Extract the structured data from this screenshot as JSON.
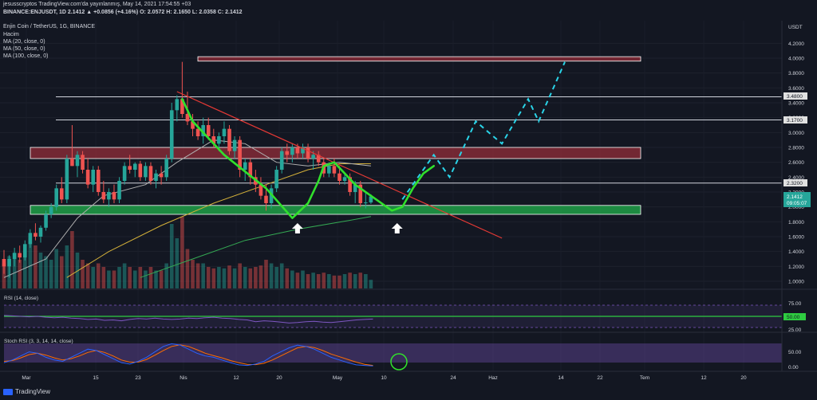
{
  "header": {
    "line1": "jesusscryptos TradingView.com'da yayınlanmış, May 14, 2021 17:54:55 +03",
    "line2": "BINANCE:ENJUSDT, 1D 2.1412 ▲ +0.0856 (+4.16%) O: 2.0572 H: 2.1650 L: 2.0358 C: 2.1412",
    "symbol_title": "Enjin Coin / TetherUS, 1G, BINANCE",
    "ind_volume": "Hacim",
    "ind_ma20": "MA (20, close, 0)",
    "ind_ma50": "MA (50, close, 0)",
    "ind_ma100": "MA (100, close, 0)"
  },
  "price_axis": {
    "currency": "USDT",
    "ticks": [
      "4.2000",
      "4.0000",
      "3.8000",
      "3.6000",
      "3.4000",
      "3.2000",
      "3.0000",
      "2.8000",
      "2.6000",
      "2.4000",
      "2.2000",
      "2.0000",
      "1.8000",
      "1.6000",
      "1.4000",
      "1.2000",
      "1.0000"
    ],
    "level_labels": [
      "3.4800",
      "3.1700",
      "2.3200"
    ],
    "last_price": "2.1412",
    "countdown": "09:05:07"
  },
  "time_axis": {
    "ticks": [
      "Mar",
      "15",
      "23",
      "Nis",
      "12",
      "20",
      "May",
      "10",
      "24",
      "Haz",
      "14",
      "22",
      "Tem",
      "12",
      "20"
    ]
  },
  "rsi_panel": {
    "title": "RSI (14, close)",
    "ticks": [
      "75.00",
      "50.00",
      "25.00"
    ],
    "current": "50.00"
  },
  "stoch_panel": {
    "title": "Stoch RSI (3, 3, 14, 14, close)",
    "ticks": [
      "50.00",
      "0.00"
    ]
  },
  "footer": {
    "brand": "TradingView"
  },
  "colors": {
    "background": "#131722",
    "up": "#26a69a",
    "down": "#ef5350",
    "support_zone": "#22b14c",
    "resistance_zone": "#8b2c38",
    "trendline": "#e53935",
    "green_path": "#31e02c",
    "projection": "#2ad4e8",
    "ma20": "#b0b0b0",
    "ma50": "#d4b13a",
    "ma100": "#34a853",
    "rsi": "#7e57c2",
    "stoch_k": "#2962ff",
    "stoch_d": "#ff6d00"
  },
  "chart_data": {
    "type": "candlestick",
    "symbol": "ENJUSDT",
    "ylim": [
      0.9,
      4.25
    ],
    "candles": [
      {
        "o": 1.3,
        "h": 1.42,
        "l": 1.1,
        "c": 1.2
      },
      {
        "o": 1.2,
        "h": 1.35,
        "l": 1.05,
        "c": 1.3
      },
      {
        "o": 1.3,
        "h": 1.45,
        "l": 1.2,
        "c": 1.38
      },
      {
        "o": 1.38,
        "h": 1.48,
        "l": 1.25,
        "c": 1.32
      },
      {
        "o": 1.32,
        "h": 1.55,
        "l": 1.28,
        "c": 1.5
      },
      {
        "o": 1.5,
        "h": 1.7,
        "l": 1.45,
        "c": 1.65
      },
      {
        "o": 1.65,
        "h": 1.78,
        "l": 1.55,
        "c": 1.6
      },
      {
        "o": 1.6,
        "h": 1.75,
        "l": 1.52,
        "c": 1.72
      },
      {
        "o": 1.72,
        "h": 1.95,
        "l": 1.68,
        "c": 1.9
      },
      {
        "o": 1.9,
        "h": 2.05,
        "l": 1.85,
        "c": 2.0
      },
      {
        "o": 2.0,
        "h": 2.3,
        "l": 1.95,
        "c": 2.25
      },
      {
        "o": 2.25,
        "h": 2.4,
        "l": 2.05,
        "c": 2.1
      },
      {
        "o": 2.1,
        "h": 2.7,
        "l": 2.05,
        "c": 2.65
      },
      {
        "o": 2.65,
        "h": 3.1,
        "l": 2.55,
        "c": 2.55
      },
      {
        "o": 2.55,
        "h": 2.75,
        "l": 2.4,
        "c": 2.7
      },
      {
        "o": 2.7,
        "h": 2.75,
        "l": 2.45,
        "c": 2.5
      },
      {
        "o": 2.5,
        "h": 2.65,
        "l": 2.25,
        "c": 2.3
      },
      {
        "o": 2.3,
        "h": 2.55,
        "l": 2.2,
        "c": 2.5
      },
      {
        "o": 2.5,
        "h": 2.55,
        "l": 2.15,
        "c": 2.2
      },
      {
        "o": 2.2,
        "h": 2.35,
        "l": 2.05,
        "c": 2.1
      },
      {
        "o": 2.1,
        "h": 2.25,
        "l": 2.0,
        "c": 2.2
      },
      {
        "o": 2.2,
        "h": 2.3,
        "l": 2.05,
        "c": 2.1
      },
      {
        "o": 2.1,
        "h": 2.4,
        "l": 2.05,
        "c": 2.35
      },
      {
        "o": 2.35,
        "h": 2.6,
        "l": 2.3,
        "c": 2.55
      },
      {
        "o": 2.55,
        "h": 2.7,
        "l": 2.45,
        "c": 2.5
      },
      {
        "o": 2.5,
        "h": 2.6,
        "l": 2.4,
        "c": 2.58
      },
      {
        "o": 2.58,
        "h": 2.62,
        "l": 2.35,
        "c": 2.4
      },
      {
        "o": 2.4,
        "h": 2.6,
        "l": 2.35,
        "c": 2.55
      },
      {
        "o": 2.55,
        "h": 2.6,
        "l": 2.3,
        "c": 2.35
      },
      {
        "o": 2.35,
        "h": 2.5,
        "l": 2.25,
        "c": 2.45
      },
      {
        "o": 2.45,
        "h": 2.55,
        "l": 2.3,
        "c": 2.4
      },
      {
        "o": 2.4,
        "h": 2.7,
        "l": 2.35,
        "c": 2.65
      },
      {
        "o": 2.65,
        "h": 3.4,
        "l": 2.6,
        "c": 3.3
      },
      {
        "o": 3.3,
        "h": 3.5,
        "l": 3.15,
        "c": 3.45
      },
      {
        "o": 3.45,
        "h": 3.95,
        "l": 3.2,
        "c": 3.25
      },
      {
        "o": 3.25,
        "h": 3.55,
        "l": 3.1,
        "c": 3.15
      },
      {
        "o": 3.15,
        "h": 3.25,
        "l": 2.95,
        "c": 3.05
      },
      {
        "o": 3.05,
        "h": 3.15,
        "l": 2.9,
        "c": 2.95
      },
      {
        "o": 2.95,
        "h": 3.2,
        "l": 2.85,
        "c": 3.1
      },
      {
        "o": 3.1,
        "h": 3.2,
        "l": 2.9,
        "c": 2.95
      },
      {
        "o": 2.95,
        "h": 3.05,
        "l": 2.8,
        "c": 2.85
      },
      {
        "o": 2.85,
        "h": 3.0,
        "l": 2.75,
        "c": 2.95
      },
      {
        "o": 2.95,
        "h": 3.15,
        "l": 2.85,
        "c": 3.05
      },
      {
        "o": 3.05,
        "h": 3.1,
        "l": 2.7,
        "c": 2.75
      },
      {
        "o": 2.75,
        "h": 2.95,
        "l": 2.65,
        "c": 2.9
      },
      {
        "o": 2.9,
        "h": 2.95,
        "l": 2.4,
        "c": 2.5
      },
      {
        "o": 2.5,
        "h": 2.65,
        "l": 2.35,
        "c": 2.6
      },
      {
        "o": 2.6,
        "h": 2.65,
        "l": 2.3,
        "c": 2.4
      },
      {
        "o": 2.4,
        "h": 2.5,
        "l": 2.2,
        "c": 2.3
      },
      {
        "o": 2.3,
        "h": 2.4,
        "l": 2.1,
        "c": 2.15
      },
      {
        "o": 2.15,
        "h": 2.3,
        "l": 1.95,
        "c": 2.05
      },
      {
        "o": 2.05,
        "h": 2.3,
        "l": 1.98,
        "c": 2.25
      },
      {
        "o": 2.25,
        "h": 2.55,
        "l": 2.2,
        "c": 2.5
      },
      {
        "o": 2.5,
        "h": 2.8,
        "l": 2.45,
        "c": 2.75
      },
      {
        "o": 2.75,
        "h": 2.85,
        "l": 2.6,
        "c": 2.7
      },
      {
        "o": 2.7,
        "h": 2.85,
        "l": 2.6,
        "c": 2.8
      },
      {
        "o": 2.8,
        "h": 2.85,
        "l": 2.65,
        "c": 2.72
      },
      {
        "o": 2.72,
        "h": 2.85,
        "l": 2.65,
        "c": 2.8
      },
      {
        "o": 2.8,
        "h": 2.85,
        "l": 2.6,
        "c": 2.65
      },
      {
        "o": 2.65,
        "h": 2.75,
        "l": 2.5,
        "c": 2.7
      },
      {
        "o": 2.7,
        "h": 2.75,
        "l": 2.55,
        "c": 2.6
      },
      {
        "o": 2.6,
        "h": 2.65,
        "l": 2.4,
        "c": 2.45
      },
      {
        "o": 2.45,
        "h": 2.6,
        "l": 2.4,
        "c": 2.55
      },
      {
        "o": 2.55,
        "h": 2.65,
        "l": 2.4,
        "c": 2.45
      },
      {
        "o": 2.45,
        "h": 2.55,
        "l": 2.3,
        "c": 2.35
      },
      {
        "o": 2.35,
        "h": 2.45,
        "l": 2.3,
        "c": 2.4
      },
      {
        "o": 2.4,
        "h": 2.45,
        "l": 2.15,
        "c": 2.2
      },
      {
        "o": 2.2,
        "h": 2.35,
        "l": 2.05,
        "c": 2.3
      },
      {
        "o": 2.3,
        "h": 2.35,
        "l": 2.0,
        "c": 2.05
      },
      {
        "o": 2.05,
        "h": 2.2,
        "l": 1.98,
        "c": 2.06
      },
      {
        "o": 2.06,
        "h": 2.17,
        "l": 2.04,
        "c": 2.14
      }
    ],
    "volume": [
      0.35,
      0.45,
      0.5,
      0.4,
      0.55,
      0.7,
      0.6,
      0.5,
      0.45,
      0.4,
      0.55,
      0.45,
      0.6,
      0.8,
      0.5,
      0.4,
      0.35,
      0.3,
      0.35,
      0.3,
      0.25,
      0.25,
      0.3,
      0.35,
      0.3,
      0.25,
      0.3,
      0.25,
      0.3,
      0.25,
      0.25,
      0.35,
      0.9,
      0.7,
      1.0,
      0.55,
      0.4,
      0.35,
      0.35,
      0.3,
      0.28,
      0.3,
      0.28,
      0.32,
      0.28,
      0.35,
      0.3,
      0.28,
      0.3,
      0.32,
      0.4,
      0.35,
      0.3,
      0.35,
      0.28,
      0.25,
      0.22,
      0.25,
      0.2,
      0.22,
      0.2,
      0.22,
      0.2,
      0.18,
      0.18,
      0.2,
      0.22,
      0.2,
      0.22,
      0.2,
      0.12
    ],
    "ma20": [
      [
        0,
        1.05
      ],
      [
        8,
        1.3
      ],
      [
        14,
        1.85
      ],
      [
        19,
        2.15
      ],
      [
        27,
        2.3
      ],
      [
        33,
        2.6
      ],
      [
        40,
        2.9
      ],
      [
        46,
        2.85
      ],
      [
        52,
        2.6
      ],
      [
        58,
        2.55
      ],
      [
        64,
        2.6
      ],
      [
        70,
        2.55
      ]
    ],
    "ma50": [
      [
        12,
        1.05
      ],
      [
        20,
        1.4
      ],
      [
        30,
        1.75
      ],
      [
        40,
        2.05
      ],
      [
        50,
        2.3
      ],
      [
        58,
        2.5
      ],
      [
        64,
        2.58
      ],
      [
        70,
        2.58
      ]
    ],
    "ma100": [
      [
        26,
        1.05
      ],
      [
        36,
        1.3
      ],
      [
        46,
        1.55
      ],
      [
        56,
        1.7
      ],
      [
        66,
        1.82
      ],
      [
        70,
        1.87
      ]
    ],
    "zones": [
      {
        "name": "resistance-top",
        "from": 3.96,
        "to": 4.02
      },
      {
        "name": "resistance-mid",
        "from": 2.65,
        "to": 2.8
      },
      {
        "name": "support",
        "from": 1.9,
        "to": 2.02
      }
    ],
    "levels": [
      3.48,
      3.17,
      2.32
    ],
    "trendline": [
      [
        33,
        3.55
      ],
      [
        95,
        1.58
      ]
    ],
    "green_path": [
      [
        34,
        3.45
      ],
      [
        36,
        3.15
      ],
      [
        42,
        2.7
      ],
      [
        50,
        2.25
      ],
      [
        55,
        1.85
      ],
      [
        58,
        2.05
      ],
      [
        60,
        2.35
      ],
      [
        61,
        2.55
      ],
      [
        63,
        2.6
      ],
      [
        65,
        2.45
      ],
      [
        67,
        2.3
      ],
      [
        70,
        2.15
      ],
      [
        74,
        1.95
      ],
      [
        76,
        2.0
      ],
      [
        78,
        2.25
      ],
      [
        80,
        2.45
      ],
      [
        82,
        2.55
      ]
    ],
    "projection": [
      [
        76,
        2.1
      ],
      [
        79,
        2.4
      ],
      [
        82,
        2.7
      ],
      [
        85,
        2.4
      ],
      [
        90,
        3.15
      ],
      [
        95,
        2.85
      ],
      [
        100,
        3.45
      ],
      [
        102,
        3.15
      ],
      [
        107,
        3.95
      ]
    ],
    "arrows": [
      56,
      75
    ],
    "rsi": [
      52,
      51,
      50,
      49,
      50,
      48,
      47,
      48,
      46,
      45,
      43,
      44,
      41,
      42,
      40,
      43,
      45,
      44,
      46,
      44,
      43,
      44,
      46,
      45,
      47,
      48,
      46,
      45,
      43,
      42,
      38,
      40,
      39,
      37,
      35,
      36,
      38,
      39,
      37,
      36,
      38,
      40,
      42,
      43,
      44
    ],
    "stoch_k": [
      20,
      30,
      45,
      60,
      55,
      40,
      30,
      25,
      40,
      55,
      70,
      65,
      50,
      35,
      20,
      15,
      25,
      40,
      60,
      80,
      90,
      85,
      70,
      55,
      45,
      40,
      30,
      20,
      12,
      10,
      15,
      25,
      45,
      60,
      75,
      85,
      80,
      70,
      55,
      40,
      30,
      20,
      12,
      10,
      8
    ],
    "stoch_d": [
      25,
      28,
      38,
      50,
      55,
      48,
      38,
      30,
      35,
      45,
      58,
      65,
      58,
      45,
      30,
      22,
      22,
      32,
      48,
      65,
      80,
      86,
      80,
      68,
      55,
      46,
      38,
      28,
      20,
      14,
      13,
      18,
      30,
      45,
      60,
      75,
      80,
      76,
      65,
      52,
      42,
      32,
      22,
      14,
      10
    ]
  }
}
